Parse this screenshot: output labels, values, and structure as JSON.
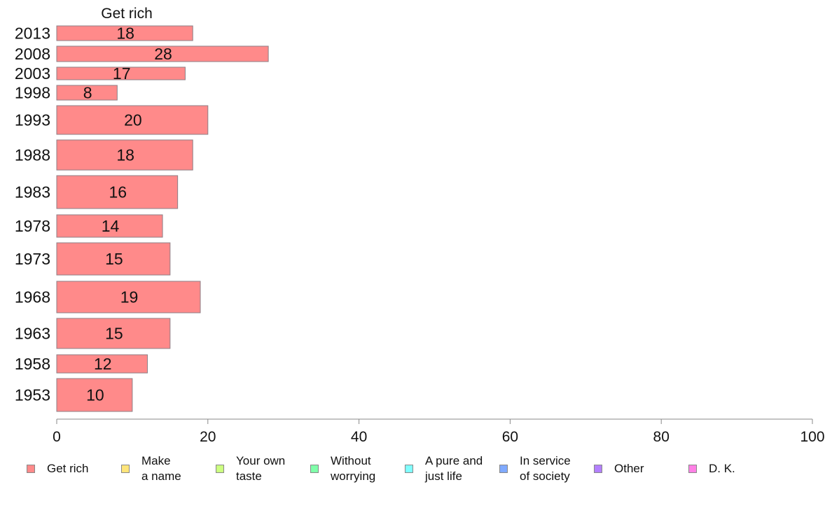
{
  "chart_data": {
    "type": "bar",
    "orientation": "horizontal",
    "title": "Get rich",
    "categories": [
      "2013",
      "2008",
      "2003",
      "1998",
      "1993",
      "1988",
      "1983",
      "1978",
      "1973",
      "1968",
      "1963",
      "1958",
      "1953"
    ],
    "series": [
      {
        "name": "Get rich",
        "values": [
          18,
          28,
          17,
          8,
          20,
          18,
          16,
          14,
          15,
          19,
          15,
          12,
          10
        ]
      }
    ],
    "data_labels": [
      "18",
      "28",
      "17",
      "8",
      "20",
      "18",
      "16",
      "14",
      "15",
      "19",
      "15",
      "12",
      "10"
    ],
    "xlim": [
      0,
      100
    ],
    "x_ticks": [
      "0",
      "20",
      "40",
      "60",
      "80",
      "100"
    ],
    "grid": false,
    "legend_position": "bottom",
    "legend": [
      {
        "label": "Get rich",
        "color": "#ff8a8a"
      },
      {
        "label": "Make\na name",
        "color": "#ffe57a"
      },
      {
        "label": "Your own\ntaste",
        "color": "#ccff80"
      },
      {
        "label": "Without\nworrying",
        "color": "#80ffaa"
      },
      {
        "label": "A pure and\njust life",
        "color": "#80ffff"
      },
      {
        "label": "In service\nof society",
        "color": "#80aaff"
      },
      {
        "label": "Other",
        "color": "#b380ff"
      },
      {
        "label": "D. K.",
        "color": "#ff80e5"
      }
    ]
  }
}
